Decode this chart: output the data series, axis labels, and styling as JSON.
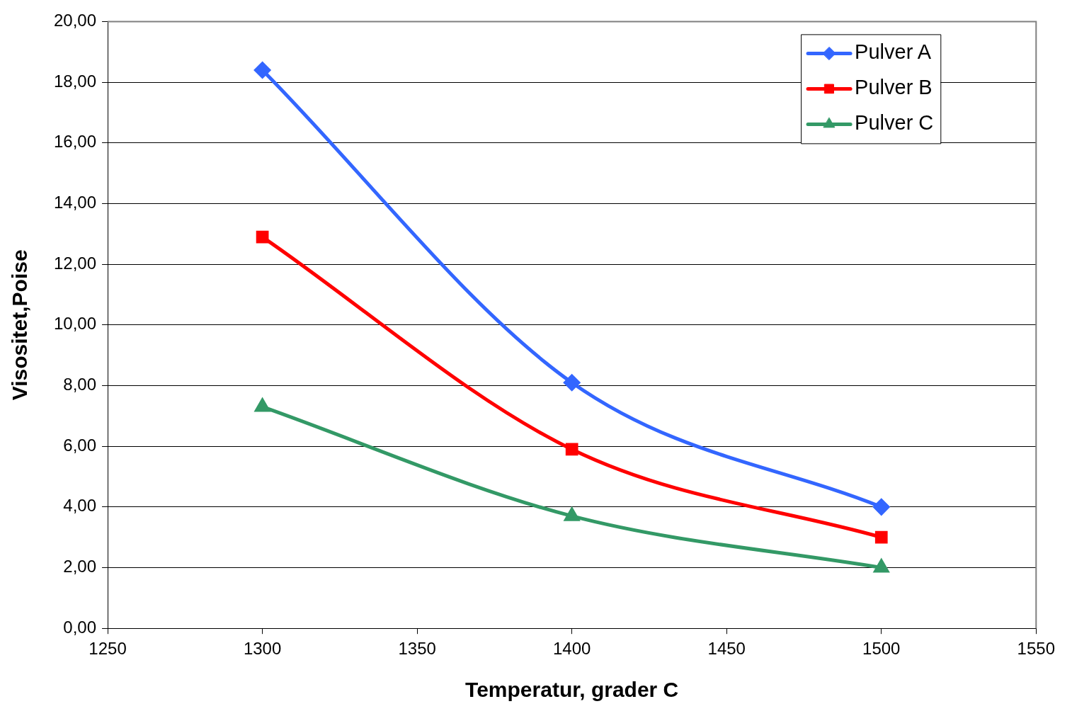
{
  "chart_data": {
    "type": "line",
    "xlabel": "Temperatur, grader C",
    "ylabel": "Visositet,Poise",
    "x": [
      1300,
      1400,
      1500
    ],
    "series": [
      {
        "name": "Pulver A",
        "color": "#3366ff",
        "marker": "diamond",
        "values": [
          18.4,
          8.1,
          4.0
        ]
      },
      {
        "name": "Pulver B",
        "color": "#ff0000",
        "marker": "square",
        "values": [
          12.9,
          5.9,
          3.0
        ]
      },
      {
        "name": "Pulver C",
        "color": "#339966",
        "marker": "triangle",
        "values": [
          7.3,
          3.7,
          2.0
        ]
      }
    ],
    "xlim": [
      1250,
      1550
    ],
    "xticks": [
      1250,
      1300,
      1350,
      1400,
      1450,
      1500,
      1550
    ],
    "ylim": [
      0,
      20
    ],
    "yticks": [
      {
        "value": 0,
        "label": "0,00"
      },
      {
        "value": 2,
        "label": "2,00"
      },
      {
        "value": 4,
        "label": "4,00"
      },
      {
        "value": 6,
        "label": "6,00"
      },
      {
        "value": 8,
        "label": "8,00"
      },
      {
        "value": 10,
        "label": "10,00"
      },
      {
        "value": 12,
        "label": "12,00"
      },
      {
        "value": 14,
        "label": "14,00"
      },
      {
        "value": 16,
        "label": "16,00"
      },
      {
        "value": 18,
        "label": "18,00"
      },
      {
        "value": 20,
        "label": "20,00"
      }
    ],
    "grid": "y",
    "legend": "top right",
    "line_style": "solid"
  }
}
